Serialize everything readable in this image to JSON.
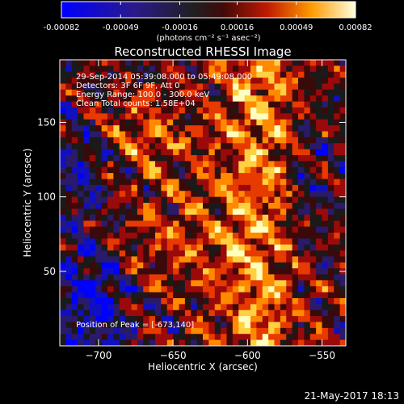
{
  "chart_data": {
    "type": "heatmap",
    "title": "Reconstructed RHESSI Image",
    "colorbar": {
      "tick_labels": [
        "-0.00082",
        "-0.00049",
        "-0.00016",
        "0.00016",
        "0.00049",
        "0.00082"
      ],
      "range": [
        -0.00082,
        0.00082
      ],
      "unit_label": "(photons cm⁻² s⁻¹ asec⁻²)"
    },
    "xlabel": "Heliocentric X (arcsec)",
    "ylabel": "Heliocentric Y (arcsec)",
    "xlim": [
      -726,
      -534
    ],
    "ylim": [
      0,
      192
    ],
    "xticks": [
      -700,
      -650,
      -600,
      -550
    ],
    "xtick_labels": [
      "−700",
      "−650",
      "−600",
      "−550"
    ],
    "yticks": [
      50,
      100,
      150
    ],
    "ytick_labels": [
      "50",
      "100",
      "150"
    ],
    "annotations": [
      "29-Sep-2014 05:39:08.000 to 05:49:08.000",
      "Detectors: 3F 6F 9F, Att 0",
      "Energy Range: 100.0 - 300.0 keV",
      "Clean     Total counts: 1.58E+04"
    ],
    "peak_label": "Position of Peak = [-673,140]",
    "peak": [
      -673,
      140
    ],
    "colormap": [
      "#0000ff",
      "#1010c0",
      "#2a1a6a",
      "#1a1a1a",
      "#3a0a0a",
      "#9a0a0a",
      "#e63a00",
      "#ff8a00",
      "#ffd040",
      "#ffffc0"
    ]
  },
  "footer": {
    "timestamp": "21-May-2017 18:13"
  }
}
